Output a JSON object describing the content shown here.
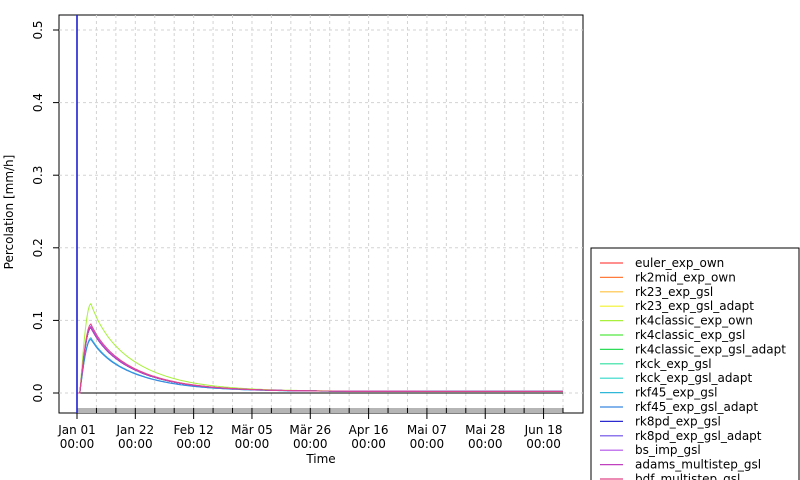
{
  "chart_data": {
    "type": "line",
    "title": "",
    "xlabel": "Time",
    "ylabel": "Percolation [mm/h]",
    "ylim": [
      0,
      0.5
    ],
    "yticks": [
      0.0,
      0.1,
      0.2,
      0.3,
      0.4,
      0.5
    ],
    "ytick_labels": [
      "0.0",
      "0.1",
      "0.2",
      "0.3",
      "0.4",
      "0.5"
    ],
    "xlim_days": [
      0,
      175
    ],
    "xticks": [
      {
        "day": 0,
        "date": "Jan 01",
        "time": "00:00"
      },
      {
        "day": 21,
        "date": "Jan 22",
        "time": "00:00"
      },
      {
        "day": 42,
        "date": "Feb 12",
        "time": "00:00"
      },
      {
        "day": 63,
        "date": "Mär 05",
        "time": "00:00"
      },
      {
        "day": 84,
        "date": "Mär 26",
        "time": "00:00"
      },
      {
        "day": 105,
        "date": "Apr 16",
        "time": "00:00"
      },
      {
        "day": 126,
        "date": "Mai 07",
        "time": "00:00"
      },
      {
        "day": 147,
        "date": "Mai 28",
        "time": "00:00"
      },
      {
        "day": 168,
        "date": "Jun 18",
        "time": "00:00"
      }
    ],
    "grid": true,
    "legend_position": "right",
    "vertical_marker_day": 0,
    "series": [
      {
        "name": "euler_exp_own",
        "color": "#FF4A4A",
        "peak": 0.09
      },
      {
        "name": "rk2mid_exp_own",
        "color": "#FF7A3D",
        "peak": 0.09
      },
      {
        "name": "rk23_exp_gsl",
        "color": "#FFC240",
        "peak": 0.09
      },
      {
        "name": "rk23_exp_gsl_adapt",
        "color": "#F2F22E",
        "peak": 0.09
      },
      {
        "name": "rk4classic_exp_own",
        "color": "#A8F03C",
        "peak": 0.123
      },
      {
        "name": "rk4classic_exp_gsl",
        "color": "#55E840",
        "peak": 0.09
      },
      {
        "name": "rk4classic_exp_gsl_adapt",
        "color": "#2FDC5A",
        "peak": 0.09
      },
      {
        "name": "rkck_exp_gsl",
        "color": "#2FE0A0",
        "peak": 0.09
      },
      {
        "name": "rkck_exp_gsl_adapt",
        "color": "#30D8CC",
        "peak": 0.09
      },
      {
        "name": "rkf45_exp_gsl",
        "color": "#2FB8D8",
        "peak": 0.076
      },
      {
        "name": "rkf45_exp_gsl_adapt",
        "color": "#3A86E0",
        "peak": 0.074
      },
      {
        "name": "rk8pd_exp_gsl",
        "color": "#2A2AD0",
        "peak": 0.09
      },
      {
        "name": "rk8pd_exp_gsl_adapt",
        "color": "#6A4AE8",
        "peak": 0.09
      },
      {
        "name": "bs_imp_gsl",
        "color": "#B050E8",
        "peak": 0.092
      },
      {
        "name": "adams_multistep_gsl",
        "color": "#C040C0",
        "peak": 0.09
      },
      {
        "name": "bdf_multistep_gsl",
        "color": "#E04888",
        "peak": 0.095
      }
    ]
  }
}
